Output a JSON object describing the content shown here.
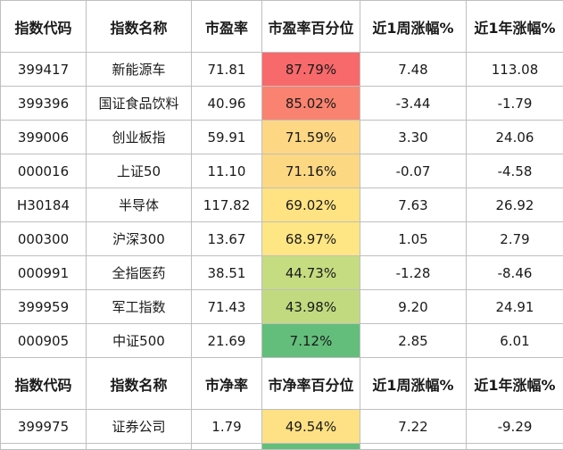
{
  "header_pe": [
    "指数代码",
    "指数名称",
    "市盈率",
    "市盈率百分位",
    "近1周涨幅%",
    "近1年涨幅%"
  ],
  "rows_pe": [
    {
      "code": "399417",
      "name": "新能源车",
      "ratio": "71.81",
      "pct": "87.79%",
      "pct_color": "#f8696b",
      "w1": "7.48",
      "y1": "113.08"
    },
    {
      "code": "399396",
      "name": "国证食品饮料",
      "ratio": "40.96",
      "pct": "85.02%",
      "pct_color": "#f98370",
      "w1": "-3.44",
      "y1": "-1.79"
    },
    {
      "code": "399006",
      "name": "创业板指",
      "ratio": "59.91",
      "pct": "71.59%",
      "pct_color": "#fdd783",
      "w1": "3.30",
      "y1": "24.06"
    },
    {
      "code": "000016",
      "name": "上证50",
      "ratio": "11.10",
      "pct": "71.16%",
      "pct_color": "#fdd883",
      "w1": "-0.07",
      "y1": "-4.58"
    },
    {
      "code": "H30184",
      "name": "半导体",
      "ratio": "117.82",
      "pct": "69.02%",
      "pct_color": "#ffe383",
      "w1": "7.63",
      "y1": "26.92"
    },
    {
      "code": "000300",
      "name": "沪深300",
      "ratio": "13.67",
      "pct": "68.97%",
      "pct_color": "#ffe684",
      "w1": "1.05",
      "y1": "2.79"
    },
    {
      "code": "000991",
      "name": "全指医药",
      "ratio": "38.51",
      "pct": "44.73%",
      "pct_color": "#c5dc81",
      "w1": "-1.28",
      "y1": "-8.46"
    },
    {
      "code": "399959",
      "name": "军工指数",
      "ratio": "71.43",
      "pct": "43.98%",
      "pct_color": "#c1da80",
      "w1": "9.20",
      "y1": "24.91"
    },
    {
      "code": "000905",
      "name": "中证500",
      "ratio": "21.69",
      "pct": "7.12%",
      "pct_color": "#63be7b",
      "w1": "2.85",
      "y1": "6.01"
    }
  ],
  "header_pb": [
    "指数代码",
    "指数名称",
    "市净率",
    "市净率百分位",
    "近1周涨幅%",
    "近1年涨幅%"
  ],
  "rows_pb": [
    {
      "code": "399975",
      "name": "证券公司",
      "ratio": "1.79",
      "pct": "49.54%",
      "pct_color": "#fde184",
      "w1": "7.22",
      "y1": "-9.29"
    }
  ],
  "partial_pct_color": "#63be7b"
}
